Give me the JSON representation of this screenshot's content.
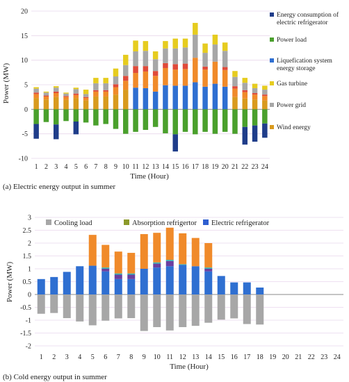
{
  "captions": {
    "a": "(a) Electric energy output in summer",
    "b": "(b) Cold energy output in summer"
  },
  "chart_data": [
    {
      "type": "bar",
      "subtype": "stacked",
      "caption": "(a) Electric energy output in summer",
      "xlabel": "Time (Hour)",
      "ylabel": "Power (MW)",
      "ylim": [
        -10,
        20
      ],
      "yticks": [
        -10,
        -5,
        0,
        5,
        10,
        15,
        20
      ],
      "grid": "horizontal",
      "legend_position": "right",
      "categories": [
        "1",
        "2",
        "3",
        "4",
        "5",
        "6",
        "7",
        "8",
        "9",
        "10",
        "11",
        "12",
        "13",
        "14",
        "15",
        "16",
        "17",
        "18",
        "19",
        "20",
        "21",
        "22",
        "23",
        "24"
      ],
      "colors": {
        "Energy consumption of electric refrigerator": "#1f3d8a",
        "Power load": "#4aa02c",
        "Liquefication system energy storage": "#2f6fd1",
        "Gas turbine": "#e6cc1f",
        "Power grid": "#a7a7a7",
        "Wind energy": "#d99a1e",
        "Orange segment": "#f08a2a",
        "Red segment": "#e04a3a"
      },
      "legend": [
        {
          "name": "Energy consumption of electric refrigerator",
          "key": "neg_ref"
        },
        {
          "name": "Power load",
          "key": "load"
        },
        {
          "name": "Liquefication system energy storage",
          "key": "lss"
        },
        {
          "name": "Gas turbine",
          "key": "gt"
        },
        {
          "name": "Power grid",
          "key": "grid"
        },
        {
          "name": "Wind energy",
          "key": "wind"
        }
      ],
      "series_positive": [
        {
          "key": "lss",
          "color": "#2f6fd1",
          "values": [
            0,
            0,
            0,
            0,
            0,
            0,
            0,
            0,
            0,
            0,
            4.4,
            4.3,
            3.6,
            4.9,
            4.8,
            4.8,
            5.5,
            4.6,
            5.2,
            4.6,
            0,
            0,
            0,
            0
          ]
        },
        {
          "key": "wind",
          "color": "#d99a1e",
          "values": [
            2.3,
            2.0,
            2.5,
            1.9,
            2.3,
            1.8,
            2.6,
            2.6,
            3.0,
            4.0,
            0,
            0,
            0,
            0,
            0,
            0,
            0,
            0,
            0,
            0,
            2.5,
            2.2,
            2.0,
            1.8
          ]
        },
        {
          "key": "orange",
          "color": "#f08a2a",
          "values": [
            0.8,
            0.6,
            0.8,
            0.6,
            0.6,
            0.5,
            1.0,
            1.0,
            1.5,
            1.8,
            3.0,
            3.4,
            3.2,
            3.5,
            3.3,
            3.4,
            5.0,
            3.5,
            4.5,
            3.4,
            1.7,
            1.3,
            1.0,
            0.9
          ]
        },
        {
          "key": "red",
          "color": "#e04a3a",
          "values": [
            0.3,
            0.2,
            0.3,
            0.2,
            0.3,
            0.2,
            0.3,
            0.3,
            0.6,
            1.0,
            1.4,
            1.1,
            1.0,
            1.0,
            1.1,
            1.1,
            0,
            0.6,
            0,
            0.6,
            0.5,
            0.4,
            0.3,
            0.3
          ]
        },
        {
          "key": "grid",
          "color": "#a7a7a7",
          "values": [
            0.8,
            0.6,
            0.8,
            0.5,
            0.9,
            0.6,
            1.4,
            1.4,
            1.6,
            2.2,
            3.0,
            3.1,
            2.4,
            3.0,
            3.2,
            3.3,
            4.7,
            2.8,
            3.5,
            3.3,
            1.9,
            1.5,
            1.0,
            1.0
          ]
        },
        {
          "key": "gt",
          "color": "#e6cc1f",
          "values": [
            0.3,
            0.2,
            0.3,
            0.2,
            0.3,
            0.9,
            1.1,
            1.1,
            1.6,
            2.1,
            2.2,
            2.0,
            1.6,
            1.5,
            2.0,
            1.8,
            2.4,
            1.9,
            2.0,
            1.7,
            1.2,
            1.0,
            0.9,
            0.8
          ]
        }
      ],
      "series_negative": [
        {
          "key": "load",
          "color": "#4aa02c",
          "values": [
            -3.0,
            -2.6,
            -3.1,
            -2.4,
            -2.5,
            -2.7,
            -3.3,
            -3.0,
            -4.0,
            -5.0,
            -4.6,
            -4.2,
            -3.6,
            -4.9,
            -5.1,
            -4.6,
            -5.1,
            -4.6,
            -5.0,
            -4.6,
            -5.0,
            -3.6,
            -3.3,
            -2.9
          ]
        },
        {
          "key": "neg_ref",
          "color": "#1f3d8a",
          "values": [
            -3.0,
            0,
            -3.0,
            0,
            -2.6,
            0,
            0,
            0,
            0,
            0,
            0,
            0,
            0,
            0,
            -3.5,
            0,
            0,
            0,
            0,
            0,
            0,
            -3.6,
            -3.3,
            -2.9
          ]
        }
      ]
    },
    {
      "type": "bar",
      "subtype": "stacked",
      "caption": "(b) Cold energy output in summer",
      "xlabel": "Time (Hour)",
      "ylabel": "Power (MW)",
      "ylim": [
        -2,
        3
      ],
      "yticks": [
        -2,
        -1.5,
        -1,
        -0.5,
        0,
        0.5,
        1,
        1.5,
        2,
        2.5,
        3
      ],
      "grid": "horizontal",
      "legend_position": "top",
      "categories": [
        "1",
        "2",
        "3",
        "4",
        "5",
        "6",
        "7",
        "8",
        "9",
        "10",
        "11",
        "12",
        "13",
        "14",
        "15",
        "16",
        "17",
        "18",
        "19",
        "20",
        "21",
        "22",
        "23",
        "24"
      ],
      "legend": [
        {
          "name": "Cooling load",
          "color": "#a7a7a7"
        },
        {
          "name": "Absorption refrigertor",
          "color": "#8c9a2a"
        },
        {
          "name": "Electric refrigerator",
          "color": "#2f5fd0"
        }
      ],
      "series_positive": [
        {
          "key": "electric",
          "color": "#2f6fd1",
          "values": [
            0.6,
            0.68,
            0.88,
            1.1,
            1.12,
            0.9,
            0.6,
            0.6,
            1.0,
            1.05,
            1.1,
            1.15,
            1.1,
            0.9,
            0.72,
            0.47,
            0.47,
            0.27,
            0,
            0,
            0,
            0,
            0,
            0
          ]
        },
        {
          "key": "purple",
          "color": "#6b3fa0",
          "values": [
            0,
            0,
            0,
            0,
            0,
            0.1,
            0.17,
            0.17,
            0,
            0.15,
            0.2,
            0,
            0,
            0.1,
            0,
            0,
            0,
            0,
            0,
            0,
            0,
            0,
            0,
            0
          ]
        },
        {
          "key": "teal",
          "color": "#3ab3b3",
          "values": [
            0,
            0,
            0,
            0,
            0,
            0.05,
            0.05,
            0.05,
            0,
            0.05,
            0.05,
            0.03,
            0,
            0.05,
            0,
            0,
            0,
            0,
            0,
            0,
            0,
            0,
            0,
            0
          ]
        },
        {
          "key": "absorption",
          "color": "#f08a2a",
          "values": [
            0,
            0,
            0,
            0,
            1.2,
            0.88,
            0.85,
            0.8,
            1.35,
            1.15,
            1.25,
            1.2,
            1.1,
            0.95,
            0,
            0,
            0,
            0,
            0,
            0,
            0,
            0,
            0,
            0
          ]
        }
      ],
      "series_negative": [
        {
          "key": "cooling",
          "color": "#a7a7a7",
          "values": [
            -0.75,
            -0.72,
            -0.92,
            -1.05,
            -1.2,
            -1.02,
            -0.93,
            -0.92,
            -1.42,
            -1.27,
            -1.4,
            -1.27,
            -1.22,
            -1.1,
            -0.98,
            -0.93,
            -1.15,
            -1.17,
            0,
            0,
            0,
            0,
            0,
            0
          ]
        }
      ]
    }
  ]
}
